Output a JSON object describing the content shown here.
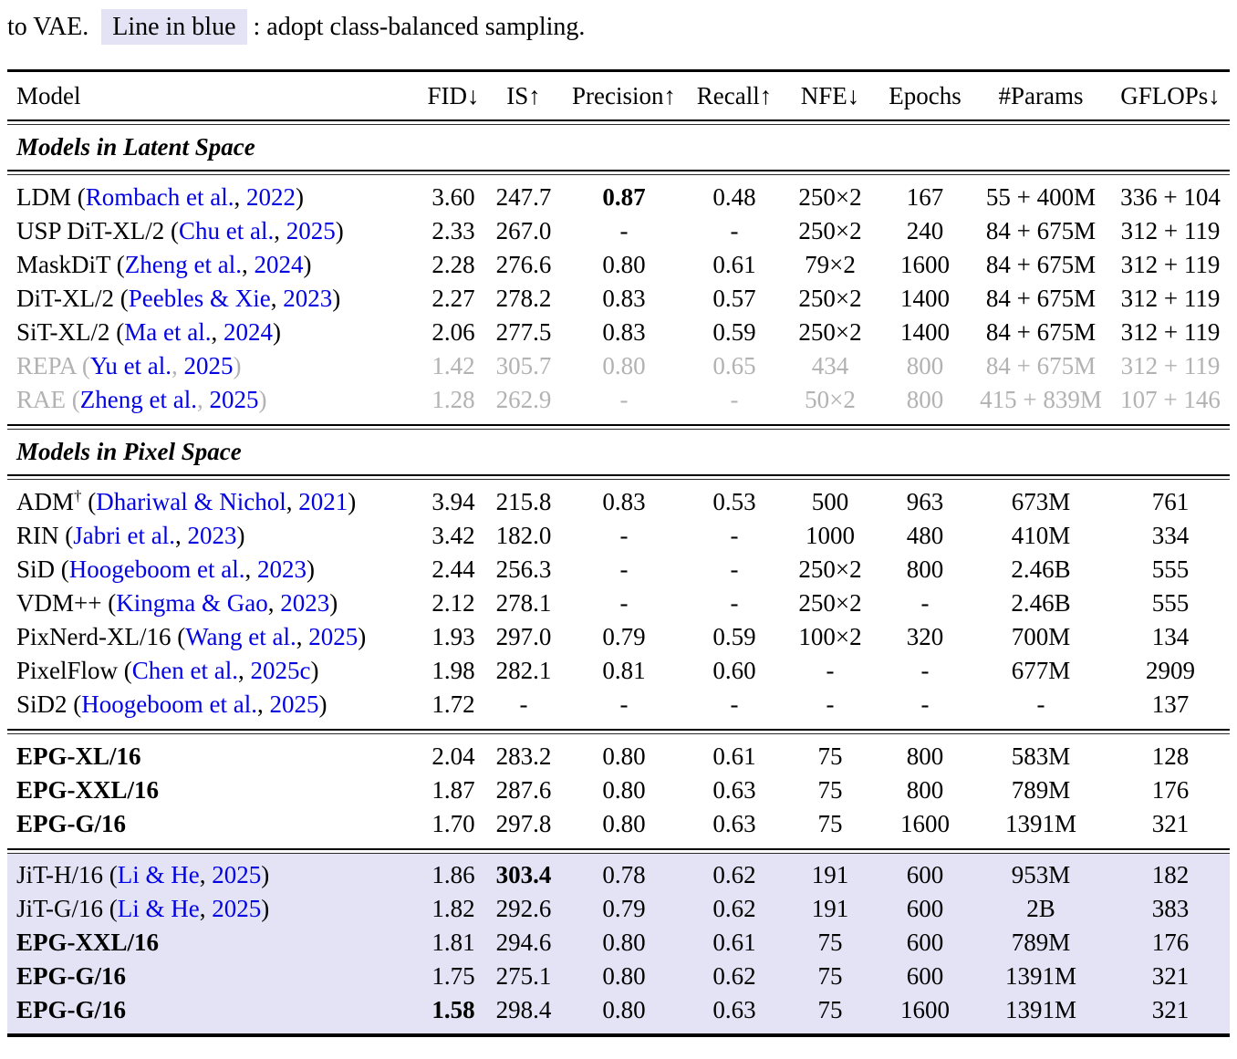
{
  "caption": {
    "prefix": "to VAE. ",
    "highlight": "Line in blue",
    "suffix": " : adopt class-balanced sampling."
  },
  "colors": {
    "link_blue": "#0202e2",
    "muted_gray": "#b2b2b2",
    "highlight_bg": "#e3e3f5"
  },
  "punct": {
    "open": " (",
    "comma": ", ",
    "close": ")"
  },
  "table": {
    "header": {
      "model": "Model",
      "cols": [
        "FID↓",
        "IS↑",
        "Precision↑",
        "Recall↑",
        "NFE↓",
        "Epochs",
        "#Params",
        "GFLOPs↓"
      ]
    },
    "sections": [
      {
        "title": "Models in Latent Space",
        "rows": [
          {
            "name": "LDM",
            "cite": {
              "authors": "Rombach et al.",
              "year": "2022"
            },
            "values": [
              "3.60",
              "247.7",
              "0.87",
              "0.48",
              "250×2",
              "167",
              "55 + 400M",
              "336 + 104"
            ],
            "bold_values": [
              2
            ]
          },
          {
            "name": "USP DiT-XL/2",
            "cite": {
              "authors": "Chu et al.",
              "year": "2025"
            },
            "values": [
              "2.33",
              "267.0",
              "-",
              "-",
              "250×2",
              "240",
              "84 + 675M",
              "312 + 119"
            ]
          },
          {
            "name": "MaskDiT",
            "cite": {
              "authors": "Zheng et al.",
              "year": "2024"
            },
            "values": [
              "2.28",
              "276.6",
              "0.80",
              "0.61",
              "79×2",
              "1600",
              "84 + 675M",
              "312 + 119"
            ]
          },
          {
            "name": "DiT-XL/2",
            "cite": {
              "authors": "Peebles & Xie",
              "year": "2023"
            },
            "values": [
              "2.27",
              "278.2",
              "0.83",
              "0.57",
              "250×2",
              "1400",
              "84 + 675M",
              "312 + 119"
            ]
          },
          {
            "name": "SiT-XL/2",
            "cite": {
              "authors": "Ma et al.",
              "year": "2024"
            },
            "values": [
              "2.06",
              "277.5",
              "0.83",
              "0.59",
              "250×2",
              "1400",
              "84 + 675M",
              "312 + 119"
            ]
          },
          {
            "name": "REPA",
            "muted": true,
            "cite": {
              "authors": "Yu et al.",
              "year": "2025"
            },
            "values": [
              "1.42",
              "305.7",
              "0.80",
              "0.65",
              "434",
              "800",
              "84 + 675M",
              "312 + 119"
            ]
          },
          {
            "name": "RAE",
            "muted": true,
            "cite": {
              "authors": "Zheng et al.",
              "year": "2025"
            },
            "values": [
              "1.28",
              "262.9",
              "-",
              "-",
              "50×2",
              "800",
              "415 + 839M",
              "107 + 146"
            ]
          }
        ]
      },
      {
        "title": "Models in Pixel Space",
        "rows": [
          {
            "name": "ADM",
            "sup": "†",
            "cite": {
              "authors": "Dhariwal & Nichol",
              "year": "2021"
            },
            "values": [
              "3.94",
              "215.8",
              "0.83",
              "0.53",
              "500",
              "963",
              "673M",
              "761"
            ]
          },
          {
            "name": "RIN",
            "cite": {
              "authors": "Jabri et al.",
              "year": "2023"
            },
            "values": [
              "3.42",
              "182.0",
              "-",
              "-",
              "1000",
              "480",
              "410M",
              "334"
            ]
          },
          {
            "name": "SiD",
            "cite": {
              "authors": "Hoogeboom et al.",
              "year": "2023"
            },
            "values": [
              "2.44",
              "256.3",
              "-",
              "-",
              "250×2",
              "800",
              "2.46B",
              "555"
            ]
          },
          {
            "name": "VDM++",
            "cite": {
              "authors": "Kingma & Gao",
              "year": "2023"
            },
            "values": [
              "2.12",
              "278.1",
              "-",
              "-",
              "250×2",
              "-",
              "2.46B",
              "555"
            ]
          },
          {
            "name": "PixNerd-XL/16",
            "cite": {
              "authors": "Wang et al.",
              "year": "2025"
            },
            "values": [
              "1.93",
              "297.0",
              "0.79",
              "0.59",
              "100×2",
              "320",
              "700M",
              "134"
            ]
          },
          {
            "name": "PixelFlow",
            "cite": {
              "authors": "Chen et al.",
              "year": "2025c"
            },
            "values": [
              "1.98",
              "282.1",
              "0.81",
              "0.60",
              "-",
              "-",
              "677M",
              "2909"
            ]
          },
          {
            "name": "SiD2",
            "cite": {
              "authors": "Hoogeboom et al.",
              "year": "2025"
            },
            "values": [
              "1.72",
              "-",
              "-",
              "-",
              "-",
              "-",
              "-",
              "137"
            ]
          }
        ]
      },
      {
        "title": null,
        "rows": [
          {
            "name": "EPG-XL/16",
            "bold_name": true,
            "values": [
              "2.04",
              "283.2",
              "0.80",
              "0.61",
              "75",
              "800",
              "583M",
              "128"
            ]
          },
          {
            "name": "EPG-XXL/16",
            "bold_name": true,
            "values": [
              "1.87",
              "287.6",
              "0.80",
              "0.63",
              "75",
              "800",
              "789M",
              "176"
            ]
          },
          {
            "name": "EPG-G/16",
            "bold_name": true,
            "values": [
              "1.70",
              "297.8",
              "0.80",
              "0.63",
              "75",
              "1600",
              "1391M",
              "321"
            ]
          }
        ]
      },
      {
        "title": null,
        "highlight": true,
        "rows": [
          {
            "name": "JiT-H/16",
            "cite": {
              "authors": "Li & He",
              "year": "2025"
            },
            "values": [
              "1.86",
              "303.4",
              "0.78",
              "0.62",
              "191",
              "600",
              "953M",
              "182"
            ],
            "bold_values": [
              1
            ]
          },
          {
            "name": "JiT-G/16",
            "cite": {
              "authors": "Li & He",
              "year": "2025"
            },
            "values": [
              "1.82",
              "292.6",
              "0.79",
              "0.62",
              "191",
              "600",
              "2B",
              "383"
            ]
          },
          {
            "name": "EPG-XXL/16",
            "bold_name": true,
            "values": [
              "1.81",
              "294.6",
              "0.80",
              "0.61",
              "75",
              "600",
              "789M",
              "176"
            ]
          },
          {
            "name": "EPG-G/16",
            "bold_name": true,
            "values": [
              "1.75",
              "275.1",
              "0.80",
              "0.62",
              "75",
              "600",
              "1391M",
              "321"
            ]
          },
          {
            "name": "EPG-G/16",
            "bold_name": true,
            "values": [
              "1.58",
              "298.4",
              "0.80",
              "0.63",
              "75",
              "1600",
              "1391M",
              "321"
            ],
            "bold_values": [
              0
            ]
          }
        ]
      }
    ]
  }
}
